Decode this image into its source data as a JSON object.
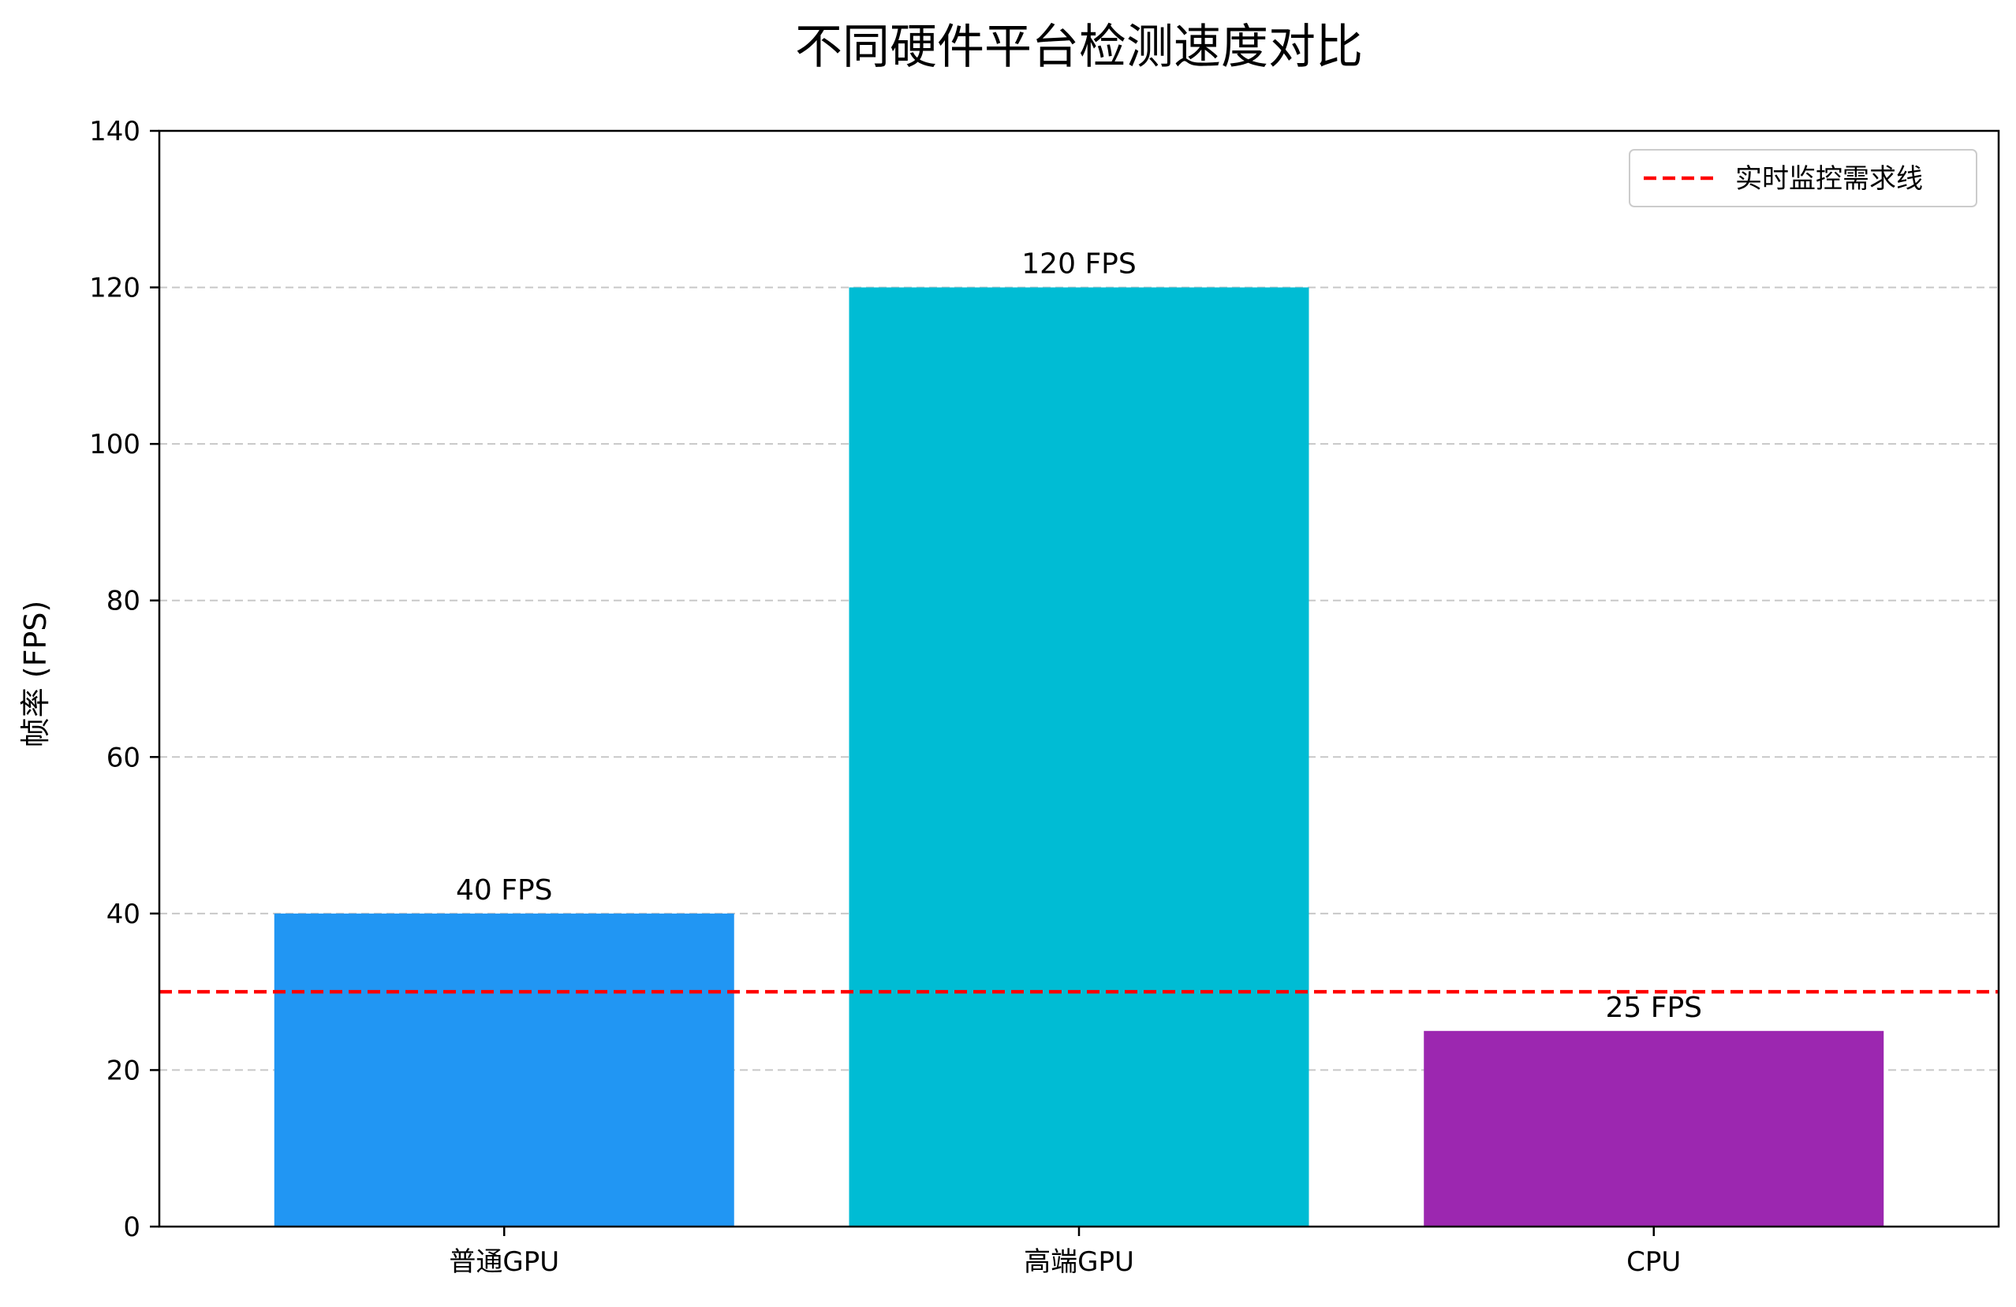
{
  "chart_data": {
    "type": "bar",
    "title": "不同硬件平台检测速度对比",
    "xlabel": "",
    "ylabel": "帧率 (FPS)",
    "ylim": [
      0,
      140
    ],
    "yticks": [
      0,
      20,
      40,
      60,
      80,
      100,
      120,
      140
    ],
    "categories": [
      "普通GPU",
      "高端GPU",
      "CPU"
    ],
    "values": [
      40,
      120,
      25
    ],
    "value_labels": [
      "40 FPS",
      "120 FPS",
      "25 FPS"
    ],
    "bar_colors": [
      "#2196F3",
      "#00BCD4",
      "#9C27B0"
    ],
    "grid": {
      "axis": "y",
      "style": "dashed",
      "color": "#c8c8c8"
    },
    "reference_line": {
      "value": 30,
      "name": "实时监控需求线",
      "color": "#ff0000",
      "style": "dashed"
    },
    "legend": {
      "position": "top-right",
      "entries": [
        "实时监控需求线"
      ]
    }
  }
}
